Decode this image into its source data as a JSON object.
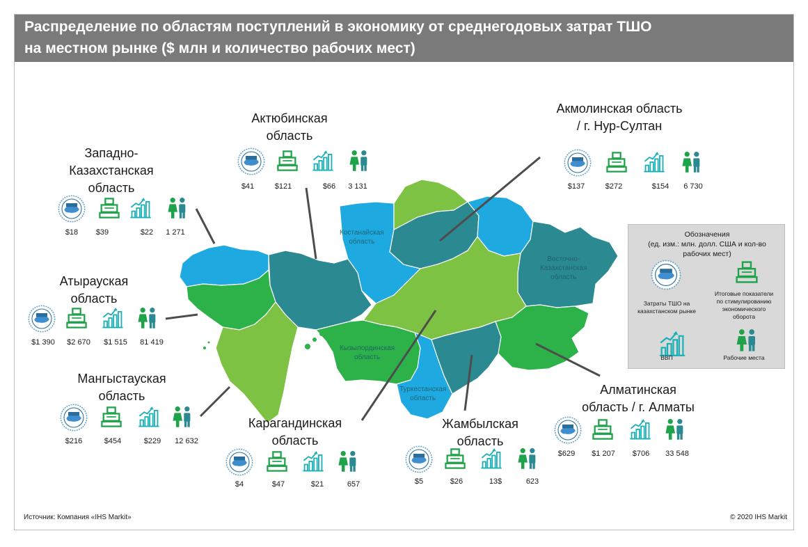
{
  "header": {
    "title_line1": "Распределение по областям поступлений в экономику от среднегодовых затрат ТШО",
    "title_line2": "на местном рынке ($ млн и количество рабочих мест)"
  },
  "icons": {
    "logo": "tco-logo-icon",
    "register": "cash-register-icon",
    "gdp": "bar-chart-growth-icon",
    "jobs": "people-icon"
  },
  "colors": {
    "teal_dark": "#2b8a91",
    "teal_icon": "#1bb0b8",
    "blue": "#1fa9e1",
    "green": "#2db24a",
    "light_green": "#7dc242",
    "green_icon": "#1fa34a"
  },
  "regions": [
    {
      "id": "west-kazakhstan",
      "name_lines": [
        "Западно-",
        "Казахстанская",
        "область"
      ],
      "values": [
        "$18",
        "$39",
        "$22",
        "1 271"
      ]
    },
    {
      "id": "aktobe",
      "name_lines": [
        "Актюбинская",
        "область"
      ],
      "values": [
        "$41",
        "$121",
        "$66",
        "3 131"
      ]
    },
    {
      "id": "akmola",
      "name_lines": [
        "Акмолинская область",
        "/ г. Нур-Султан"
      ],
      "values": [
        "$137",
        "$272",
        "$154",
        "6 730"
      ]
    },
    {
      "id": "atyrau",
      "name_lines": [
        "Атырауская",
        "область"
      ],
      "values": [
        "$1 390",
        "$2 670",
        "$1 515",
        "81 419"
      ]
    },
    {
      "id": "mangystau",
      "name_lines": [
        "Мангыстауская",
        "область"
      ],
      "values": [
        "$216",
        "$454",
        "$229",
        "12 632"
      ]
    },
    {
      "id": "karaganda",
      "name_lines": [
        "Карагандинская",
        "область"
      ],
      "values": [
        "$4",
        "$47",
        "$21",
        "657"
      ]
    },
    {
      "id": "zhambyl",
      "name_lines": [
        "Жамбылская",
        "область"
      ],
      "values": [
        "$5",
        "$26",
        "13$",
        "623"
      ]
    },
    {
      "id": "almaty",
      "name_lines": [
        "Алматинская",
        "область / г. Алматы"
      ],
      "values": [
        "$629",
        "$1 207",
        "$706",
        "33 548"
      ]
    }
  ],
  "map_labels": [
    {
      "id": "kostanay",
      "lines": [
        "Костанайская",
        "область"
      ]
    },
    {
      "id": "east-kazakhstan",
      "lines": [
        "Восточно-",
        "Казахстанская",
        "область"
      ]
    },
    {
      "id": "kyzylorda",
      "lines": [
        "Кызылординская",
        "область"
      ]
    },
    {
      "id": "turkestan",
      "lines": [
        "Туркестанская",
        "область"
      ]
    }
  ],
  "legend": {
    "title_lines": [
      "Обозначения",
      "(ед. изм.: млн. долл. США и кол-во",
      "рабочих мест)"
    ],
    "items": [
      {
        "icon": "tco-logo-icon",
        "label_lines": [
          "Затраты ТШО на",
          "казахстанском рынке"
        ]
      },
      {
        "icon": "cash-register-icon",
        "label_lines": [
          "Итоговые показатели",
          "по стимулированию",
          "экономического",
          "оборота"
        ]
      },
      {
        "icon": "bar-chart-growth-icon",
        "label_lines": [
          "ВВП"
        ]
      },
      {
        "icon": "people-icon",
        "label_lines": [
          "Рабочие места"
        ]
      }
    ]
  },
  "footer": {
    "source": "Источник: Компания «IHS Markit»",
    "copyright": "© 2020 IHS Markit"
  }
}
